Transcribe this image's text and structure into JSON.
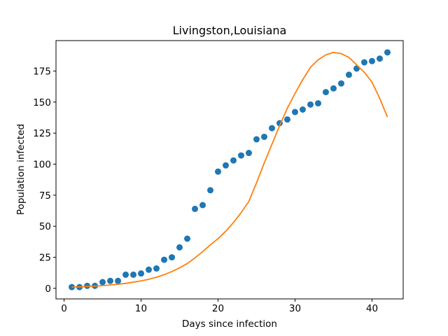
{
  "chart_data": {
    "type": "scatter",
    "title": "Livingston,Louisiana",
    "xlabel": "Days since infection",
    "ylabel": "Population infected",
    "x": [
      1,
      2,
      3,
      4,
      5,
      6,
      7,
      8,
      9,
      10,
      11,
      12,
      13,
      14,
      15,
      16,
      17,
      18,
      19,
      20,
      21,
      22,
      23,
      24,
      25,
      26,
      27,
      28,
      29,
      30,
      31,
      32,
      33,
      34,
      35,
      36,
      37,
      38,
      39,
      40,
      41,
      42
    ],
    "series": [
      {
        "type": "scatter",
        "color": "#1f77b4",
        "values": [
          1,
          1,
          2,
          2,
          5,
          6,
          6,
          11,
          11,
          12,
          15,
          16,
          23,
          25,
          33,
          40,
          64,
          67,
          79,
          94,
          99,
          103,
          107,
          109,
          120,
          122,
          129,
          133,
          136,
          142,
          144,
          148,
          149,
          158,
          161,
          165,
          172,
          177,
          182,
          183,
          185,
          190
        ]
      },
      {
        "type": "line",
        "color": "#ff7f0e",
        "values": [
          1,
          1.2,
          1.5,
          1.8,
          2.2,
          2.7,
          3.3,
          4,
          5,
          6,
          7.3,
          9,
          11,
          13.5,
          16.5,
          20,
          24.5,
          29.5,
          35,
          40,
          46,
          53,
          61,
          70,
          85,
          101,
          116,
          131,
          145,
          157,
          168,
          178,
          184,
          188,
          190,
          189,
          186,
          180,
          174,
          166,
          153,
          138
        ]
      }
    ],
    "xlim": [
      -1.05,
      44.05
    ],
    "ylim": [
      -8.5,
      199.5
    ],
    "xticks": [
      0,
      10,
      20,
      30,
      40
    ],
    "yticks": [
      0,
      25,
      50,
      75,
      100,
      125,
      150,
      175
    ]
  }
}
